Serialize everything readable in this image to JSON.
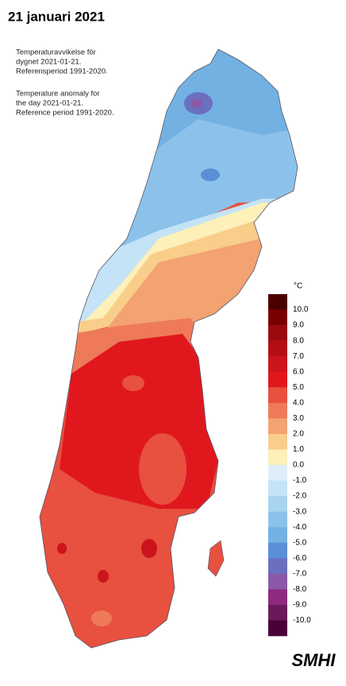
{
  "header": {
    "title": "21 januari 2021"
  },
  "description": {
    "swedish": [
      "Temperaturavvikelse för",
      "dygnet 2021-01-21.",
      "Referensperiod 1991-2020."
    ],
    "english": [
      "Temperature anomaly for",
      "the day 2021-01-21.",
      "Reference period 1991-2020."
    ]
  },
  "legend": {
    "unit": "°C",
    "labels": [
      "10.0",
      "9.0",
      "8.0",
      "7.0",
      "6.0",
      "5.0",
      "4.0",
      "3.0",
      "2.0",
      "1.0",
      "0.0",
      "-1.0",
      "-2.0",
      "-3.0",
      "-4.0",
      "-5.0",
      "-6.0",
      "-7.0",
      "-8.0",
      "-9.0",
      "-10.0"
    ],
    "colors": [
      "#4a0000",
      "#7a0000",
      "#9c0a0f",
      "#b50f16",
      "#cc141c",
      "#e0181e",
      "#e8503f",
      "#ee7a5a",
      "#f3a272",
      "#f9cd8a",
      "#fdf0b8",
      "#ddeefa",
      "#c4e3f6",
      "#a8d4f0",
      "#8cc2ea",
      "#73b1e3",
      "#5a8fd6",
      "#6a6fbf",
      "#8a5aa8",
      "#8e2a80",
      "#6a1a5a",
      "#4a0038"
    ]
  },
  "logo": "SMHI"
}
